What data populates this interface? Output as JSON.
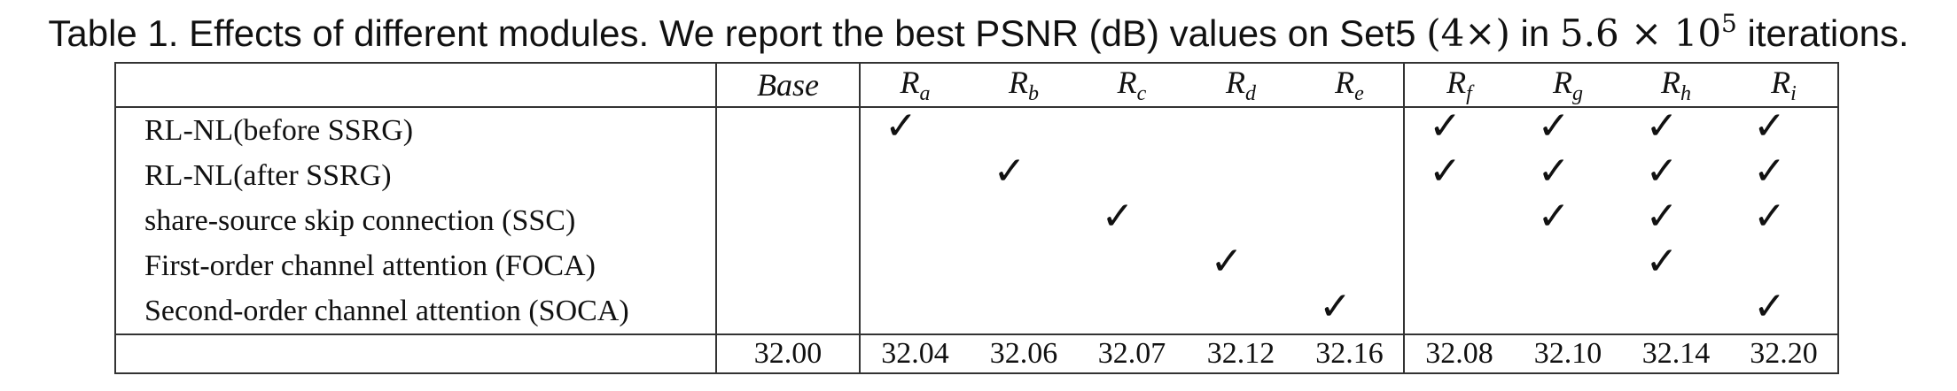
{
  "caption": {
    "prefix": "Table 1. Effects of different modules. We report the best PSNR (dB) values on Set5 ",
    "scale": "(4×)",
    "in_word": " in ",
    "iter_base": "5.6 × 10",
    "iter_exp": "5",
    "suffix": " iterations."
  },
  "table": {
    "columns": [
      {
        "id": "base",
        "label": "Base",
        "sub": ""
      },
      {
        "id": "ra",
        "label": "R",
        "sub": "a"
      },
      {
        "id": "rb",
        "label": "R",
        "sub": "b"
      },
      {
        "id": "rc",
        "label": "R",
        "sub": "c"
      },
      {
        "id": "rd",
        "label": "R",
        "sub": "d"
      },
      {
        "id": "re",
        "label": "R",
        "sub": "e"
      },
      {
        "id": "rf",
        "label": "R",
        "sub": "f"
      },
      {
        "id": "rg",
        "label": "R",
        "sub": "g"
      },
      {
        "id": "rh",
        "label": "R",
        "sub": "h"
      },
      {
        "id": "ri",
        "label": "R",
        "sub": "i"
      }
    ],
    "check_symbol": "✓",
    "rows": [
      {
        "label": "RL-NL(before SSRG)",
        "checks": [
          false,
          true,
          false,
          false,
          false,
          false,
          true,
          true,
          true,
          true
        ]
      },
      {
        "label": "RL-NL(after SSRG)",
        "checks": [
          false,
          false,
          true,
          false,
          false,
          false,
          true,
          true,
          true,
          true
        ]
      },
      {
        "label": "share-source skip connection (SSC)",
        "checks": [
          false,
          false,
          false,
          true,
          false,
          false,
          false,
          true,
          true,
          true
        ]
      },
      {
        "label": "First-order channel attention (FOCA)",
        "checks": [
          false,
          false,
          false,
          false,
          true,
          false,
          false,
          false,
          true,
          false
        ]
      },
      {
        "label": "Second-order channel attention (SOCA)",
        "checks": [
          false,
          false,
          false,
          false,
          false,
          true,
          false,
          false,
          false,
          true
        ]
      }
    ],
    "results": [
      "32.00",
      "32.04",
      "32.06",
      "32.07",
      "32.12",
      "32.16",
      "32.08",
      "32.10",
      "32.14",
      "32.20"
    ]
  }
}
